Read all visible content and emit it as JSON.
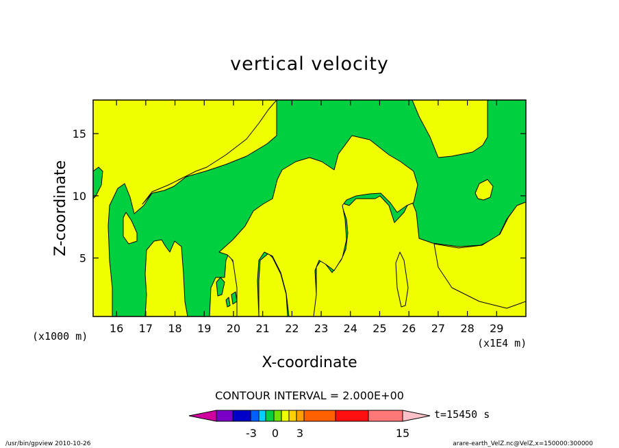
{
  "chart_data": {
    "type": "heatmap",
    "title": "vertical velocity",
    "xlabel": "X-coordinate",
    "ylabel": "Z-coordinate",
    "x_ticks": [
      16,
      17,
      18,
      19,
      20,
      21,
      22,
      23,
      24,
      25,
      26,
      27,
      28,
      29
    ],
    "y_ticks": [
      5,
      10,
      15
    ],
    "x_range": [
      15.2,
      30.0
    ],
    "y_range": [
      0.3,
      17.7
    ],
    "x_scale_label": "(x1E4 m)",
    "y_scale_label": "(x1000 m)",
    "contour_interval_text": "CONTOUR INTERVAL = 2.000E+00",
    "time_label": "t=15450 s",
    "colorbar": {
      "tick_labels": [
        "-3",
        "0",
        "3",
        "15"
      ],
      "colors": [
        "#d000a0",
        "#7a00c8",
        "#0000c8",
        "#0060ff",
        "#00d0ff",
        "#00d040",
        "#70e000",
        "#f0ff00",
        "#ffd000",
        "#ffa000",
        "#ff6000",
        "#ff1010",
        "#ff7878",
        "#ffc0c8"
      ]
    },
    "field_colors": {
      "positive": "#f0ff00",
      "negative": "#00d040"
    },
    "footer_left": "/usr/bin/gpview   2010-10-26",
    "footer_right": "arare-earth_VelZ.nc@VelZ,x=150000:300000"
  }
}
